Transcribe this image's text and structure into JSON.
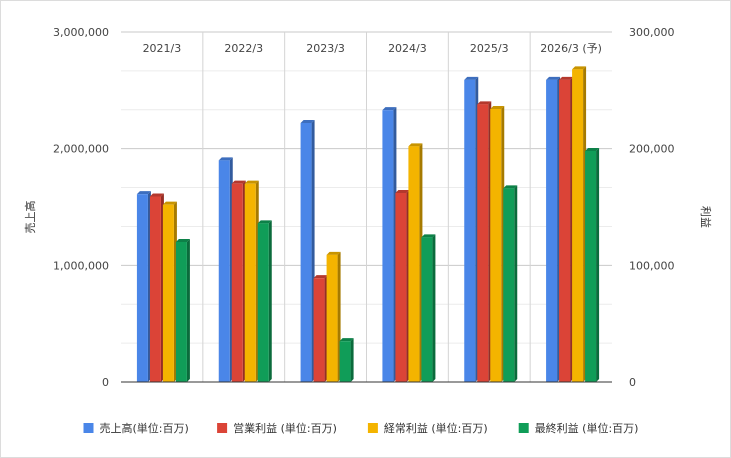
{
  "chart_data": {
    "type": "bar",
    "categories": [
      "2021/3",
      "2022/3",
      "2023/3",
      "2024/3",
      "2025/3",
      "2026/3 (予)"
    ],
    "series": [
      {
        "name": "売上高(単位:百万)",
        "axis": "left",
        "color": "#4a86e8",
        "values": [
          1610000,
          1900000,
          2220000,
          2330000,
          2590000,
          2590000
        ]
      },
      {
        "name": "営業利益 (単位:百万)",
        "axis": "right",
        "color": "#db4437",
        "values": [
          159000,
          170000,
          89000,
          162000,
          238000,
          259000
        ]
      },
      {
        "name": "経常利益 (単位:百万)",
        "axis": "right",
        "color": "#f4b400",
        "values": [
          152000,
          170000,
          109000,
          202000,
          234000,
          268000
        ]
      },
      {
        "name": "最終利益 (単位:百万)",
        "axis": "right",
        "color": "#109d58",
        "values": [
          120000,
          136000,
          35000,
          124000,
          166000,
          198000
        ]
      }
    ],
    "y_left": {
      "label": "売上高",
      "ylim": [
        0,
        3000000
      ],
      "ticks": [
        0,
        1000000,
        2000000,
        3000000
      ],
      "tick_labels": [
        "0",
        "1,000,000",
        "2,000,000",
        "3,000,000"
      ]
    },
    "y_right": {
      "label": "利益",
      "ylim": [
        0,
        300000
      ],
      "ticks": [
        0,
        100000,
        200000,
        300000
      ],
      "tick_labels": [
        "0",
        "100,000",
        "200,000",
        "300,000"
      ]
    },
    "grid": true,
    "legend_position": "bottom"
  }
}
